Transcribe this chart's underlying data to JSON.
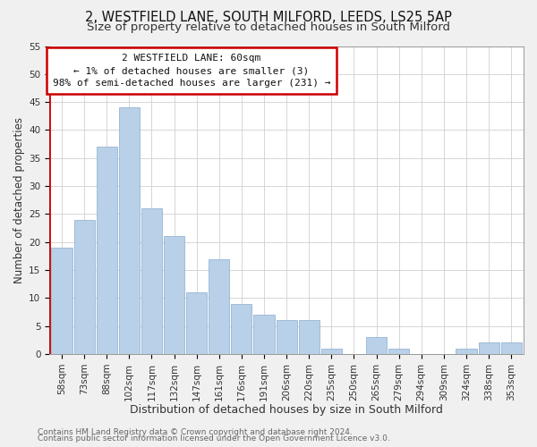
{
  "title1": "2, WESTFIELD LANE, SOUTH MILFORD, LEEDS, LS25 5AP",
  "title2": "Size of property relative to detached houses in South Milford",
  "xlabel": "Distribution of detached houses by size in South Milford",
  "ylabel": "Number of detached properties",
  "bar_labels": [
    "58sqm",
    "73sqm",
    "88sqm",
    "102sqm",
    "117sqm",
    "132sqm",
    "147sqm",
    "161sqm",
    "176sqm",
    "191sqm",
    "206sqm",
    "220sqm",
    "235sqm",
    "250sqm",
    "265sqm",
    "279sqm",
    "294sqm",
    "309sqm",
    "324sqm",
    "338sqm",
    "353sqm"
  ],
  "bar_values": [
    19,
    24,
    37,
    44,
    26,
    21,
    11,
    17,
    9,
    7,
    6,
    6,
    1,
    0,
    3,
    1,
    0,
    0,
    1,
    2,
    2
  ],
  "bar_color": "#b8d0e8",
  "highlight_color": "#cc0000",
  "ylim": [
    0,
    55
  ],
  "yticks": [
    0,
    5,
    10,
    15,
    20,
    25,
    30,
    35,
    40,
    45,
    50,
    55
  ],
  "annotation_title": "2 WESTFIELD LANE: 60sqm",
  "annotation_line1": "← 1% of detached houses are smaller (3)",
  "annotation_line2": "98% of semi-detached houses are larger (231) →",
  "footer1": "Contains HM Land Registry data © Crown copyright and database right 2024.",
  "footer2": "Contains public sector information licensed under the Open Government Licence v3.0.",
  "background_color": "#f0f0f0",
  "plot_bg_color": "#ffffff",
  "grid_color": "#d0d0d0",
  "annotation_box_color": "#ffffff",
  "annotation_box_edge": "#cc0000",
  "title1_fontsize": 10.5,
  "title2_fontsize": 9.5,
  "xlabel_fontsize": 9,
  "ylabel_fontsize": 8.5,
  "tick_fontsize": 7.5,
  "annotation_fontsize": 8,
  "footer_fontsize": 6.5
}
